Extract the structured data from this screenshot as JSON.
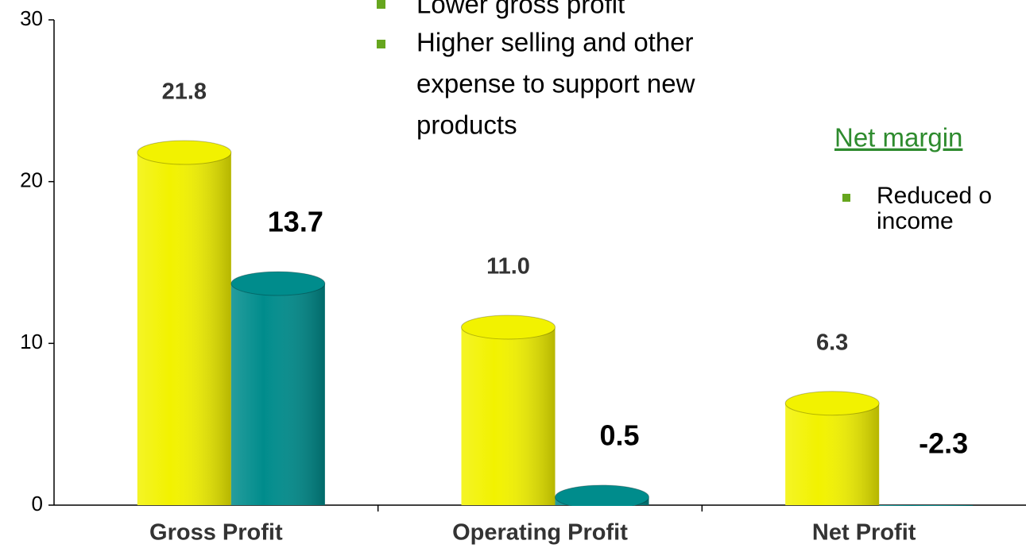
{
  "chart_data": {
    "type": "bar",
    "categories": [
      "Gross Profit",
      "Operating Profit",
      "Net Profit"
    ],
    "series": [
      {
        "color": "#f2f200",
        "values": [
          21.8,
          11.0,
          6.3
        ],
        "value_labels": [
          "21.8",
          "11.0",
          "6.3"
        ]
      },
      {
        "color": "#008c8c",
        "values": [
          13.7,
          0.5,
          -2.3
        ],
        "value_labels": [
          "13.7",
          "0.5",
          "-2.3"
        ]
      }
    ],
    "ylim": [
      0,
      30
    ],
    "yticks": [
      0,
      10,
      20,
      30
    ],
    "notes": {
      "left_bullets": [
        "Lower gross profit",
        "Higher selling and other",
        "expense to support new",
        "products"
      ],
      "right_heading": "Net margin",
      "right_bullets": [
        "Reduced o",
        "income"
      ]
    }
  }
}
